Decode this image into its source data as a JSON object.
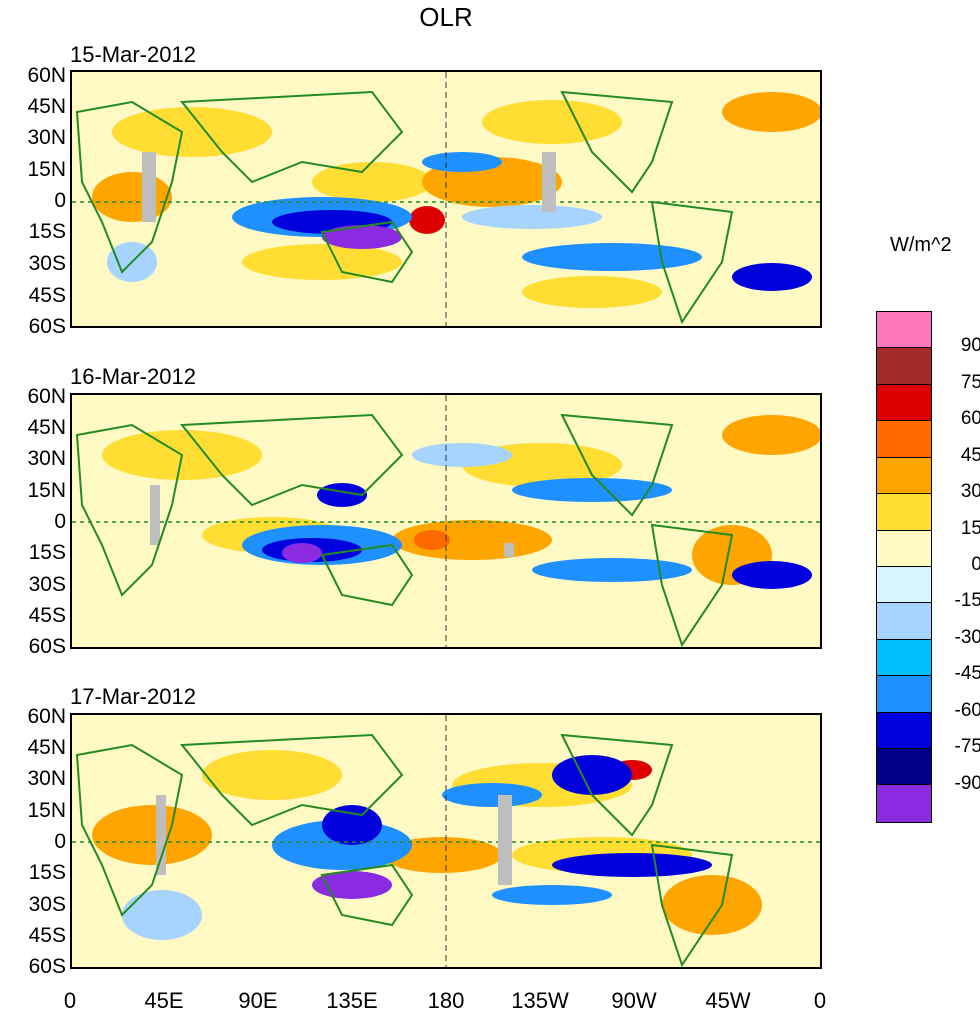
{
  "title": "OLR",
  "units_label": "W/m^2",
  "lat_ticks": [
    "60N",
    "45N",
    "30N",
    "15N",
    "0",
    "15S",
    "30S",
    "45S",
    "60S"
  ],
  "lon_ticks": [
    "0",
    "45E",
    "90E",
    "135E",
    "180",
    "135W",
    "90W",
    "45W",
    "0"
  ],
  "panels": [
    {
      "date": "15-Mar-2012"
    },
    {
      "date": "16-Mar-2012"
    },
    {
      "date": "17-Mar-2012"
    }
  ],
  "colorbar": {
    "colors": [
      "#ff77bb",
      "#a52a2a",
      "#dd0000",
      "#ff6a00",
      "#ffa500",
      "#ffdd33",
      "#fff9c4",
      "#d6f6ff",
      "#a6d4ff",
      "#00bfff",
      "#1e90ff",
      "#0000dd",
      "#00008b",
      "#8a2be2"
    ],
    "labels": [
      "90",
      "75",
      "60",
      "45",
      "30",
      "15",
      "0",
      "-15",
      "-30",
      "-45",
      "-60",
      "-75",
      "-90"
    ]
  },
  "colors": {
    "land_outline": "#228b22",
    "missing": "#bebebe"
  }
}
